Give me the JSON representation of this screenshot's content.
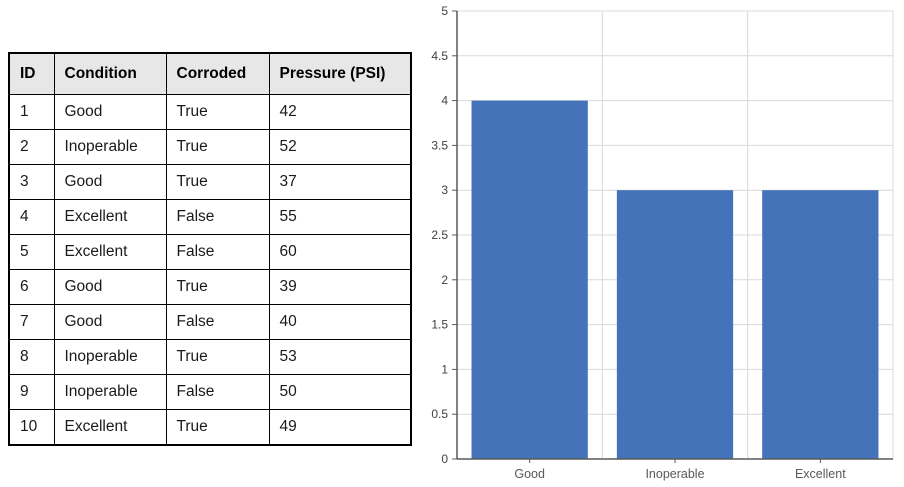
{
  "table": {
    "headers": [
      "ID",
      "Condition",
      "Corroded",
      "Pressure (PSI)"
    ],
    "rows": [
      [
        "1",
        "Good",
        "True",
        "42"
      ],
      [
        "2",
        "Inoperable",
        "True",
        "52"
      ],
      [
        "3",
        "Good",
        "True",
        "37"
      ],
      [
        "4",
        "Excellent",
        "False",
        "55"
      ],
      [
        "5",
        "Excellent",
        "False",
        "60"
      ],
      [
        "6",
        "Good",
        "True",
        "39"
      ],
      [
        "7",
        "Good",
        "False",
        "40"
      ],
      [
        "8",
        "Inoperable",
        "True",
        "53"
      ],
      [
        "9",
        "Inoperable",
        "False",
        "50"
      ],
      [
        "10",
        "Excellent",
        "True",
        "49"
      ]
    ],
    "header_bg": "#e7e7e7",
    "border_color": "#000000"
  },
  "chart_data": {
    "type": "bar",
    "categories": [
      "Good",
      "Inoperable",
      "Excellent"
    ],
    "values": [
      4,
      3,
      3
    ],
    "title": "",
    "xlabel": "",
    "ylabel": "",
    "ylim": [
      0,
      5
    ],
    "ytick_step": 0.5,
    "ytick_labels": [
      "0",
      "0.5",
      "1",
      "1.5",
      "2",
      "2.5",
      "3",
      "3.5",
      "4",
      "4.5",
      "5"
    ],
    "grid": true,
    "legend_position": "none",
    "bar_color": "#4473B9",
    "gridline_color": "#D9D9D9",
    "axis_color": "#595959",
    "ytick_label_color": "#404040",
    "xtick_label_color": "#595959"
  }
}
